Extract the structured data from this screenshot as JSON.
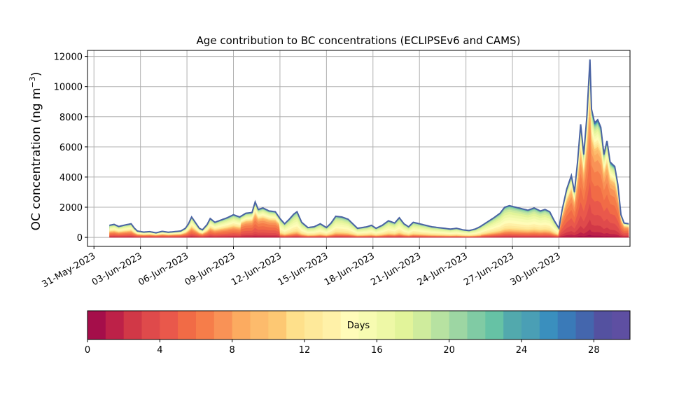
{
  "chart_data": {
    "type": "area",
    "title": "Age contribution to BC concentrations (ECLIPSEv6 and CAMS)",
    "ylabel": "OC concentration (ng m",
    "ylabel_superscript": "−3",
    "ylabel_close": ")",
    "ylim": [
      -600,
      12400
    ],
    "yticks": [
      0,
      2000,
      4000,
      6000,
      8000,
      10000,
      12000
    ],
    "xlim": [
      "2023-05-30T14:00",
      "2023-07-04T14:00"
    ],
    "xticks": [
      "31-May-2023",
      "03-Jun-2023",
      "06-Jun-2023",
      "09-Jun-2023",
      "12-Jun-2023",
      "15-Jun-2023",
      "18-Jun-2023",
      "21-Jun-2023",
      "24-Jun-2023",
      "27-Jun-2023",
      "30-Jun-2023"
    ],
    "grid": true,
    "stacking": "cumulative by age bin, 0 to 30 days",
    "total_series": {
      "color": "#4a63a3",
      "x_days_from": "2023-06-01",
      "points": [
        [
          0.0,
          800
        ],
        [
          0.3,
          860
        ],
        [
          0.6,
          720
        ],
        [
          1.0,
          820
        ],
        [
          1.4,
          900
        ],
        [
          1.6,
          620
        ],
        [
          1.8,
          420
        ],
        [
          2.2,
          350
        ],
        [
          2.6,
          380
        ],
        [
          3.0,
          300
        ],
        [
          3.4,
          400
        ],
        [
          3.8,
          340
        ],
        [
          4.2,
          380
        ],
        [
          4.6,
          420
        ],
        [
          4.9,
          600
        ],
        [
          5.1,
          900
        ],
        [
          5.3,
          1350
        ],
        [
          5.5,
          1050
        ],
        [
          5.8,
          600
        ],
        [
          6.0,
          500
        ],
        [
          6.3,
          850
        ],
        [
          6.5,
          1250
        ],
        [
          6.8,
          1000
        ],
        [
          7.2,
          1150
        ],
        [
          7.6,
          1300
        ],
        [
          8.0,
          1500
        ],
        [
          8.4,
          1350
        ],
        [
          8.8,
          1600
        ],
        [
          9.2,
          1650
        ],
        [
          9.4,
          2350
        ],
        [
          9.6,
          1850
        ],
        [
          9.9,
          1950
        ],
        [
          10.3,
          1750
        ],
        [
          10.7,
          1700
        ],
        [
          11.0,
          1250
        ],
        [
          11.3,
          900
        ],
        [
          11.6,
          1200
        ],
        [
          11.9,
          1550
        ],
        [
          12.1,
          1700
        ],
        [
          12.4,
          1000
        ],
        [
          12.8,
          650
        ],
        [
          13.2,
          700
        ],
        [
          13.6,
          900
        ],
        [
          14.0,
          650
        ],
        [
          14.3,
          950
        ],
        [
          14.6,
          1400
        ],
        [
          15.0,
          1350
        ],
        [
          15.4,
          1200
        ],
        [
          15.7,
          900
        ],
        [
          16.0,
          600
        ],
        [
          16.3,
          650
        ],
        [
          16.6,
          700
        ],
        [
          16.9,
          800
        ],
        [
          17.2,
          600
        ],
        [
          17.6,
          800
        ],
        [
          18.0,
          1100
        ],
        [
          18.4,
          950
        ],
        [
          18.7,
          1300
        ],
        [
          19.0,
          900
        ],
        [
          19.3,
          700
        ],
        [
          19.6,
          1000
        ],
        [
          20.0,
          900
        ],
        [
          20.4,
          800
        ],
        [
          20.8,
          700
        ],
        [
          21.2,
          650
        ],
        [
          21.6,
          600
        ],
        [
          22.0,
          550
        ],
        [
          22.4,
          600
        ],
        [
          22.8,
          500
        ],
        [
          23.2,
          450
        ],
        [
          23.6,
          550
        ],
        [
          23.9,
          700
        ],
        [
          24.2,
          900
        ],
        [
          24.5,
          1100
        ],
        [
          24.8,
          1300
        ],
        [
          25.2,
          1600
        ],
        [
          25.5,
          2000
        ],
        [
          25.8,
          2100
        ],
        [
          26.2,
          2000
        ],
        [
          26.6,
          1900
        ],
        [
          27.0,
          1800
        ],
        [
          27.4,
          1950
        ],
        [
          27.8,
          1750
        ],
        [
          28.1,
          1850
        ],
        [
          28.4,
          1700
        ],
        [
          28.7,
          1100
        ],
        [
          29.0,
          600
        ],
        [
          29.2,
          1800
        ],
        [
          29.5,
          3200
        ],
        [
          29.8,
          4100
        ],
        [
          30.0,
          3000
        ],
        [
          30.2,
          5000
        ],
        [
          30.4,
          7500
        ],
        [
          30.6,
          5500
        ],
        [
          30.8,
          8000
        ],
        [
          31.0,
          11800
        ],
        [
          31.1,
          8500
        ],
        [
          31.3,
          7600
        ],
        [
          31.5,
          7800
        ],
        [
          31.7,
          7300
        ],
        [
          31.9,
          5500
        ],
        [
          32.1,
          6400
        ],
        [
          32.3,
          5000
        ],
        [
          32.6,
          4700
        ],
        [
          32.8,
          3500
        ],
        [
          33.0,
          1500
        ],
        [
          33.2,
          950
        ],
        [
          33.5,
          900
        ]
      ]
    },
    "age_shares_by_period": [
      {
        "days": [
          0,
          8.5
        ],
        "fresh_fraction": 0.55
      },
      {
        "days": [
          8.5,
          11
        ],
        "fresh_fraction": 0.75
      },
      {
        "days": [
          11,
          24
        ],
        "fresh_fraction": 0.2
      },
      {
        "days": [
          24,
          29
        ],
        "fresh_fraction": 0.25
      },
      {
        "days": [
          29,
          33.5
        ],
        "fresh_fraction": 0.85
      }
    ],
    "colorbar": {
      "label": "Days",
      "min": 0,
      "max": 30,
      "bins": 30,
      "ticks": [
        0,
        4,
        8,
        12,
        16,
        20,
        24,
        28
      ],
      "colors": [
        "#a50e4a",
        "#bd2148",
        "#d13847",
        "#df4a4b",
        "#e9584b",
        "#f16b46",
        "#f67d4a",
        "#f99256",
        "#fcab60",
        "#fdbb6c",
        "#fdc873",
        "#fee08b",
        "#fee99a",
        "#fff1a8",
        "#fffcb9",
        "#f7fbb1",
        "#eef8a6",
        "#e2f49a",
        "#cfec9d",
        "#b7e2a1",
        "#9dd6a3",
        "#80cba4",
        "#66c2a5",
        "#52a9ad",
        "#4a9fb5",
        "#3a8fbe",
        "#3a7ab8",
        "#4466ad",
        "#5451a0",
        "#5e4fa2"
      ]
    }
  }
}
